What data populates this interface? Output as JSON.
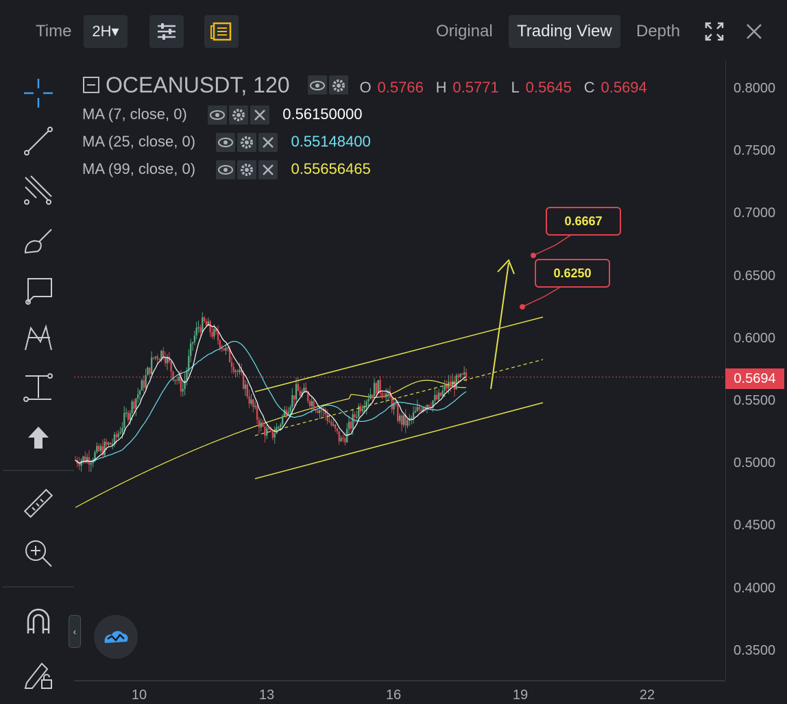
{
  "toolbar": {
    "time_label": "Time",
    "interval": "2H▾",
    "views": [
      "Original",
      "Trading View",
      "Depth"
    ],
    "active_view": "Trading View",
    "icons": [
      "indicator-settings-icon",
      "notes-icon",
      "fullscreen-icon",
      "close-icon"
    ]
  },
  "legend": {
    "symbol": "OCEANUSDT, 120",
    "ohlc": [
      {
        "key": "O",
        "value": "0.5766"
      },
      {
        "key": "H",
        "value": "0.5771"
      },
      {
        "key": "L",
        "value": "0.5645"
      },
      {
        "key": "C",
        "value": "0.5694"
      }
    ],
    "ma": [
      {
        "label": "MA (7, close, 0)",
        "value": "0.56150000",
        "color": "#ffffff"
      },
      {
        "label": "MA (25, close, 0)",
        "value": "0.55148400",
        "color": "#6fe0f0"
      },
      {
        "label": "MA (99, close, 0)",
        "value": "0.55656465",
        "color": "#f1e94e"
      }
    ]
  },
  "axis": {
    "y_ticks": [
      "0.8000",
      "0.7500",
      "0.7000",
      "0.6500",
      "0.6000",
      "0.5500",
      "0.5000",
      "0.4500",
      "0.4000",
      "0.3500"
    ],
    "x_ticks": [
      "10",
      "13",
      "16",
      "19",
      "22"
    ],
    "last_price": "0.5694"
  },
  "annotations": {
    "target_high": "0.6667",
    "target_low": "0.6250"
  },
  "left_tools": [
    "crosshair-icon",
    "trend-line-icon",
    "fib-icon",
    "brush-icon",
    "callout-icon",
    "pattern-icon",
    "measure-icon",
    "arrow-up-icon",
    "ruler-icon",
    "zoom-in-icon",
    "magnet-icon",
    "lock-draw-icon"
  ],
  "colors": {
    "up": "#5aa57f",
    "down": "#e0434f",
    "accent": "#f0b90b",
    "channel": "#e6e04a"
  }
}
